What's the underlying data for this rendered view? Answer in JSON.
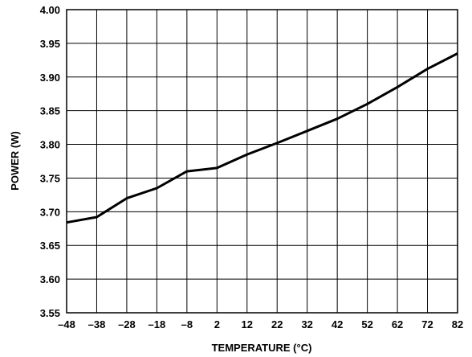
{
  "chart_data": {
    "type": "line",
    "xlabel": "TEMPERATURE (°C)",
    "ylabel": "POWER (W)",
    "xlim": [
      -48,
      82
    ],
    "ylim": [
      3.55,
      4.0
    ],
    "x_ticks": [
      "–48",
      "–38",
      "–28",
      "–18",
      "–8",
      "2",
      "12",
      "22",
      "32",
      "42",
      "52",
      "62",
      "72",
      "82"
    ],
    "x_tick_values": [
      -48,
      -38,
      -28,
      -18,
      -8,
      2,
      12,
      22,
      32,
      42,
      52,
      62,
      72,
      82
    ],
    "y_ticks": [
      "3.55",
      "3.60",
      "3.65",
      "3.70",
      "3.75",
      "3.80",
      "3.85",
      "3.90",
      "3.95",
      "4.00"
    ],
    "y_tick_values": [
      3.55,
      3.6,
      3.65,
      3.7,
      3.75,
      3.8,
      3.85,
      3.9,
      3.95,
      4.0
    ],
    "grid": true,
    "series": [
      {
        "x": [
          -48,
          -38,
          -28,
          -18,
          -8,
          2,
          12,
          22,
          32,
          42,
          52,
          62,
          72,
          82
        ],
        "y": [
          3.684,
          3.692,
          3.72,
          3.735,
          3.76,
          3.765,
          3.785,
          3.802,
          3.82,
          3.838,
          3.86,
          3.885,
          3.912,
          3.935
        ],
        "color": "#000000"
      }
    ]
  }
}
